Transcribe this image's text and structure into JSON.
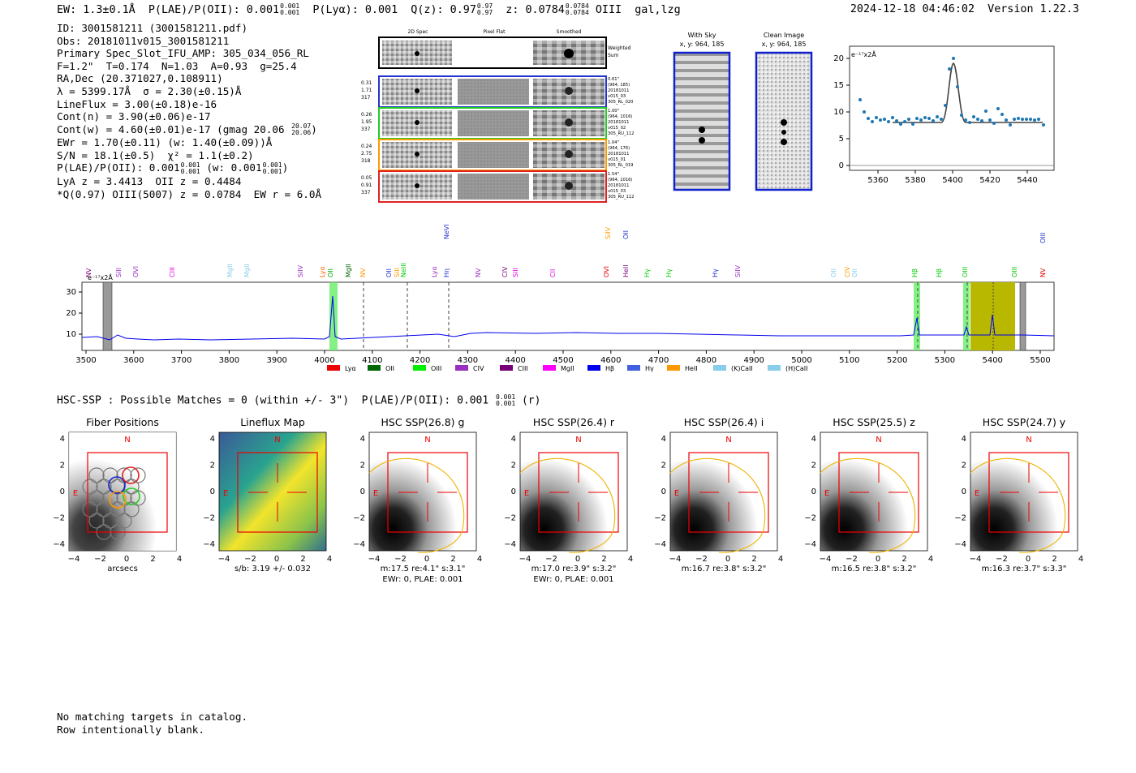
{
  "header": {
    "top_line": "EW: 1.3±0.1Å  P(LAE)/P(OII): 0.001  P(Lyα): 0.001  Q(z): 0.97  z: 0.0784  OIII  gal,lzg",
    "ew": "EW: 1.3±0.1Å",
    "plae_label": "P(LAE)/P(OII): 0.001",
    "plae_up": "0.001",
    "plae_down": "0.001",
    "plya": "P(Lyα): 0.001",
    "qz": "Q(z): 0.97",
    "qz_up": "0.97",
    "qz_down": "0.97",
    "z": "z: 0.0784",
    "z_up": "0.0784",
    "z_down": "0.0784",
    "line_class": "OIII  gal,lzg",
    "timestamp_version": "2024-12-18 04:46:02  Version 1.22.3"
  },
  "info": {
    "id": "ID: 3001581211 (3001581211.pdf)",
    "obs": "Obs: 20181011v015_3001581211",
    "primary": "Primary Spec_Slot_IFU_AMP: 305_034_056_RL",
    "fwhm": "F=1.2\"  T=0.174  N=1.03  A=0.93  g=25.4",
    "radec": "RA,Dec (20.371027,0.108911)",
    "lambda": "λ = 5399.17Å  σ = 2.30(±0.15)Å",
    "lineflux": "LineFlux = 3.00(±0.18)e-16",
    "contn": "Cont(n) = 3.90(±0.06)e-17",
    "contw": "Cont(w) = 4.60(±0.01)e-17 (gmag 20.06",
    "gmag_up": "20.07",
    "gmag_down": "20.06",
    "ewr": "EWr = 1.70(±0.11) (w: 1.40(±0.09))Å",
    "sn": "S/N = 18.1(±0.5)  χ² = 1.1(±0.2)",
    "plae": "P(LAE)/P(OII): 0.001",
    "plae_w": "(w: 0.001",
    "frac_up": "0.001",
    "frac_down": "0.001",
    "lya": "LyA z = 3.4413  OII z = 0.4484",
    "q": "*Q(0.97) OIII(5007) z = 0.0784  EW r = 6.0Å"
  },
  "cutouts": {
    "col_headers": [
      "2D Spec",
      "Pixel Flat",
      "Smoothed"
    ],
    "weighted_label": "Weighted Sum",
    "rows": [
      {
        "stats": [
          "0.31",
          "1.71",
          "317"
        ],
        "color": "#2233cc",
        "meta": [
          "0.61\"",
          "(964, 185)",
          "20181011",
          "v015_03",
          "305_RL_020"
        ]
      },
      {
        "stats": [
          "0.26",
          "1.95",
          "337"
        ],
        "color": "#22cc22",
        "meta": [
          "1.00\"",
          "(964, 1016)",
          "20181011",
          "v015_02",
          "305_RU_112"
        ]
      },
      {
        "stats": [
          "0.24",
          "2.75",
          "318"
        ],
        "color": "#ff9900",
        "meta": [
          "1.04\"",
          "(964, 176)",
          "20181011",
          "v015_01",
          "305_RL_019"
        ]
      },
      {
        "stats": [
          "0.05",
          "0.91",
          "337"
        ],
        "color": "#dd2222",
        "meta": [
          "1.54\"",
          "(964, 1016)",
          "20181011",
          "v015_03",
          "305_RU_112"
        ]
      }
    ]
  },
  "sky_images": [
    {
      "title": "With Sky",
      "coords": "x, y: 964, 185"
    },
    {
      "title": "Clean Image",
      "coords": "x, y: 964, 185"
    }
  ],
  "zoom_plot": {
    "ylabel": "e⁻¹⁷x2Å",
    "xticks": [
      "5360",
      "5380",
      "5400",
      "5420",
      "5440"
    ],
    "yticks": [
      "0",
      "5",
      "10",
      "15",
      "20"
    ]
  },
  "spectrum": {
    "ylabel": "e⁻¹⁷x2Å",
    "xticks": [
      "3500",
      "3600",
      "3700",
      "3800",
      "3900",
      "4000",
      "4100",
      "4200",
      "4300",
      "4400",
      "4500",
      "4600",
      "4700",
      "4800",
      "4900",
      "5000",
      "5100",
      "5200",
      "5300",
      "5400",
      "5500"
    ],
    "yticks": [
      "10",
      "20",
      "30"
    ],
    "line_labels": [
      {
        "name": "NV",
        "color": "#7a007a"
      },
      {
        "name": "SiII",
        "color": "#9a30c0"
      },
      {
        "name": "OVI",
        "color": "#9a30c0"
      },
      {
        "name": "CIII",
        "color": "#e000e0"
      },
      {
        "name": "MgII",
        "color": "#87ceeb"
      },
      {
        "name": "MgII",
        "color": "#87ceeb"
      },
      {
        "name": "SiIV",
        "color": "#9a30c0"
      },
      {
        "name": "Lyα",
        "color": "#ff6600"
      },
      {
        "name": "OII",
        "color": "#00aa00"
      },
      {
        "name": "MgII",
        "color": "#006600"
      },
      {
        "name": "NV",
        "color": "#ff9900"
      },
      {
        "name": "OII",
        "color": "#2233cc"
      },
      {
        "name": "SiII",
        "color": "#ff9900"
      },
      {
        "name": "NeIII",
        "color": "#00cc00"
      },
      {
        "name": "Lyα",
        "color": "#9a30c0"
      },
      {
        "name": "Hη",
        "color": "#2233cc"
      },
      {
        "name": "NeVI",
        "color": "#2233cc"
      },
      {
        "name": "NV",
        "color": "#9a30c0"
      },
      {
        "name": "CIV",
        "color": "#7a007a"
      },
      {
        "name": "SiII",
        "color": "#e000e0"
      },
      {
        "name": "CII",
        "color": "#e000e0"
      },
      {
        "name": "OVI",
        "color": "#ee0000"
      },
      {
        "name": "SiIV",
        "color": "#ff9900"
      },
      {
        "name": "HeII",
        "color": "#7a007a"
      },
      {
        "name": "OII",
        "color": "#2233cc"
      },
      {
        "name": "Hγ",
        "color": "#00cc00"
      },
      {
        "name": "Hγ",
        "color": "#00cc00"
      },
      {
        "name": "Hγ",
        "color": "#2233cc"
      },
      {
        "name": "SiIV",
        "color": "#9a30c0"
      },
      {
        "name": "OII",
        "color": "#87ceeb"
      },
      {
        "name": "CIV",
        "color": "#ff9900"
      },
      {
        "name": "OII",
        "color": "#87ceeb"
      },
      {
        "name": "Hβ",
        "color": "#00cc00"
      },
      {
        "name": "Hβ",
        "color": "#00cc00"
      },
      {
        "name": "OIII",
        "color": "#00cc00"
      },
      {
        "name": "OIII",
        "color": "#00cc00"
      },
      {
        "name": "NV",
        "color": "#ee0000"
      },
      {
        "name": "OIII",
        "color": "#2233cc"
      }
    ],
    "legend": [
      {
        "name": "Lyα",
        "color": "#ee0000"
      },
      {
        "name": "OII",
        "color": "#006600"
      },
      {
        "name": "OIII",
        "color": "#00ee00"
      },
      {
        "name": "CIV",
        "color": "#9a30c0"
      },
      {
        "name": "CIII",
        "color": "#7a007a"
      },
      {
        "name": "MgII",
        "color": "#ff00ff"
      },
      {
        "name": "Hβ",
        "color": "#0000ee"
      },
      {
        "name": "Hγ",
        "color": "#4060e0"
      },
      {
        "name": "HeII",
        "color": "#ff9900"
      },
      {
        "name": "(K)CaII",
        "color": "#87ceeb"
      },
      {
        "name": "(H)CaII",
        "color": "#87ceeb"
      }
    ]
  },
  "hsc": {
    "header": "HSC-SSP : Possible Matches = 0 (within +/- 3\")  P(LAE)/P(OII): 0.001",
    "header_frac_up": "0.001",
    "header_frac_down": "0.001",
    "header_suffix": "(r)",
    "panels": [
      {
        "title": "Fiber Positions",
        "foot1": "arcsecs",
        "foot2": ""
      },
      {
        "title": "Lineflux Map",
        "foot1": "s/b: 3.19 +/- 0.032",
        "foot2": ""
      },
      {
        "title": "HSC SSP(26.8) g",
        "foot1": "m:17.5  re:4.1\"  s:3.1\"",
        "foot2": ""
      },
      {
        "title": "HSC SSP(26.4) r",
        "foot1": "m:17.0  re:3.9\"  s:3.2\"",
        "foot2": "EWr: 0, PLAE: 0.001"
      },
      {
        "title": "HSC SSP(26.4) i",
        "foot1": "m:16.7  re:3.8\"  s:3.2\"",
        "foot2": ""
      },
      {
        "title": "HSC SSP(25.5) z",
        "foot1": "m:16.5  re:3.8\"  s:3.2\"",
        "foot2": ""
      },
      {
        "title": "HSC SSP(24.7) y",
        "foot1": "m:16.3  re:3.7\"  s:3.3\"",
        "foot2": ""
      }
    ],
    "ticks_x": [
      "−4",
      "−2",
      "0",
      "2",
      "4"
    ],
    "ticks_y": [
      "4",
      "2",
      "0",
      "−2",
      "−4"
    ],
    "n_label": "N",
    "e_label": "E",
    "panel2_foot2": "EWr: 0, PLAE: 0.001"
  },
  "bottom": {
    "line1": "No matching targets in catalog.",
    "line2": "Row intentionally blank."
  }
}
